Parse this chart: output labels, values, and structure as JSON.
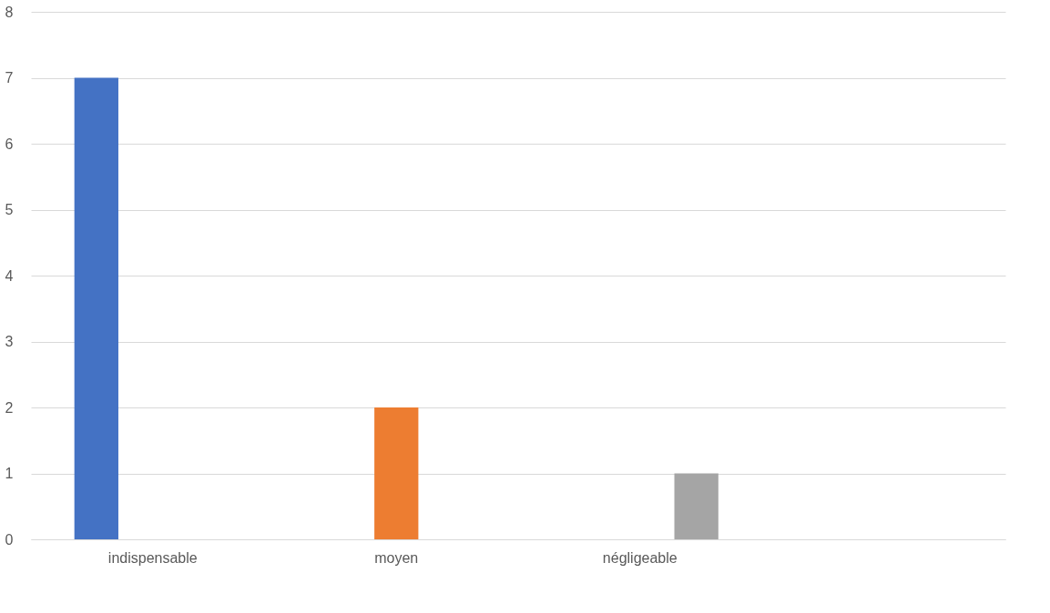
{
  "chart_data": {
    "type": "bar",
    "categories": [
      "indispensable",
      "moyen",
      "négligeable",
      null
    ],
    "series": [
      {
        "color": "#4472c4",
        "values": [
          7,
          null,
          null,
          null
        ]
      },
      {
        "color": "#ed7d31",
        "values": [
          null,
          2,
          null,
          null
        ]
      },
      {
        "color": "#a5a5a5",
        "values": [
          null,
          null,
          1,
          null
        ]
      }
    ],
    "ylim": [
      0,
      8
    ],
    "yticks": [
      0,
      1,
      2,
      3,
      4,
      5,
      6,
      7,
      8
    ],
    "grid": "y",
    "legend": false
  }
}
